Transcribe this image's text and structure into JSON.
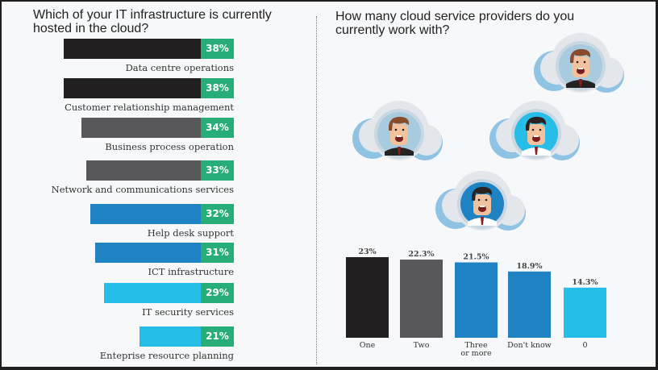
{
  "colors": {
    "black": "#211f20",
    "dark_gray": "#58585a",
    "blue": "#1f82c3",
    "light_blue": "#27bde9",
    "green": "#27ae78",
    "background": "#f6f8fa"
  },
  "left_panel": {
    "title": "Which of your IT infrastructure is currently hosted in the cloud?"
  },
  "right_panel": {
    "title": "How many cloud service providers do you currently work with?",
    "illustration": "cloud-avatars-icon"
  },
  "chart_data": [
    {
      "type": "bar",
      "orientation": "horizontal",
      "title": "Which of your IT infrastructure is currently hosted in the cloud?",
      "categories": [
        "Data centre operations",
        "Customer relationship management",
        "Business process operation",
        "Network and communications services",
        "Help desk support",
        "ICT infrastructure",
        "IT security services",
        "Enteprise resource planning"
      ],
      "values": [
        38,
        38,
        34,
        33,
        32,
        31,
        29,
        21
      ],
      "labels": [
        "38%",
        "38%",
        "34%",
        "33%",
        "32%",
        "31%",
        "29%",
        "21%"
      ],
      "bar_colors": [
        "#211f20",
        "#211f20",
        "#58585a",
        "#58585a",
        "#1f82c3",
        "#1f82c3",
        "#27bde9",
        "#27bde9"
      ],
      "unit": "%",
      "xlabel": "",
      "ylabel": "",
      "grid": false,
      "legend": "none"
    },
    {
      "type": "bar",
      "orientation": "vertical",
      "title": "How many cloud service providers do you currently work with?",
      "categories": [
        "One",
        "Two",
        "Three\nor more",
        "Don't know",
        "0"
      ],
      "category_lines": [
        [
          "One"
        ],
        [
          "Two"
        ],
        [
          "Three",
          "or more"
        ],
        [
          "Don't know"
        ],
        [
          "0"
        ]
      ],
      "values": [
        23,
        22.3,
        21.5,
        18.9,
        14.3
      ],
      "labels": [
        "23%",
        "22.3%",
        "21.5%",
        "18.9%",
        "14.3%"
      ],
      "bar_colors": [
        "#211f20",
        "#58585a",
        "#1f82c3",
        "#1f82c3",
        "#27bde9"
      ],
      "unit": "%",
      "xlabel": "",
      "ylabel": "",
      "grid": false,
      "legend": "none"
    }
  ]
}
